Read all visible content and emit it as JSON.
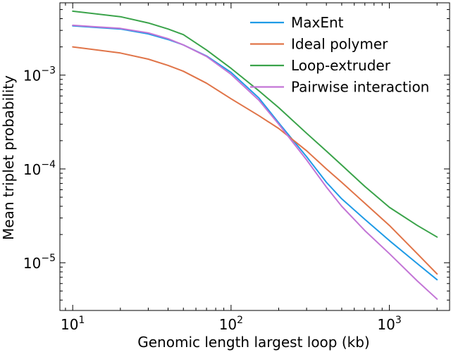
{
  "chart_data": {
    "type": "line",
    "title": "",
    "xlabel": "Genomic length largest loop (kb)",
    "ylabel": "Mean triplet probability",
    "xscale": "log",
    "yscale": "log",
    "xlim": [
      8.3,
      2400
    ],
    "ylim": [
      3.1e-06,
      0.0059
    ],
    "grid": false,
    "legend_position": "top-right",
    "x_ticks": [
      {
        "value": 10,
        "base": "10",
        "exp": "1"
      },
      {
        "value": 100,
        "base": "10",
        "exp": "2"
      },
      {
        "value": 1000,
        "base": "10",
        "exp": "3"
      }
    ],
    "y_ticks": [
      {
        "value": 1e-05,
        "base": "10",
        "exp": "−5"
      },
      {
        "value": 0.0001,
        "base": "10",
        "exp": "−4"
      },
      {
        "value": 0.001,
        "base": "10",
        "exp": "−3"
      }
    ],
    "series": [
      {
        "name": "MaxEnt",
        "color": "#1f9be6",
        "x": [
          10,
          20,
          30,
          40,
          50,
          70,
          100,
          150,
          200,
          300,
          400,
          500,
          700,
          1000,
          1500,
          2000
        ],
        "y": [
          0.00335,
          0.0031,
          0.00275,
          0.0024,
          0.0021,
          0.0016,
          0.00107,
          0.00057,
          0.00031,
          0.000135,
          7.2e-05,
          4.8e-05,
          2.9e-05,
          1.72e-05,
          9.8e-06,
          6.6e-06
        ]
      },
      {
        "name": "Ideal polymer",
        "color": "#e07448",
        "x": [
          10,
          20,
          30,
          40,
          50,
          70,
          100,
          150,
          200,
          300,
          400,
          500,
          700,
          1000,
          1500,
          2000
        ],
        "y": [
          0.002,
          0.00172,
          0.00148,
          0.00127,
          0.0011,
          0.00082,
          0.00056,
          0.00037,
          0.00027,
          0.000156,
          0.0001,
          7.2e-05,
          4.3e-05,
          2.5e-05,
          1.25e-05,
          7.6e-06
        ]
      },
      {
        "name": "Loop-extruder",
        "color": "#3aa34a",
        "x": [
          10,
          20,
          30,
          40,
          50,
          70,
          100,
          150,
          200,
          300,
          400,
          500,
          700,
          1000,
          1500,
          2000
        ],
        "y": [
          0.0048,
          0.0042,
          0.0036,
          0.0031,
          0.0027,
          0.00185,
          0.00118,
          0.00068,
          0.00045,
          0.00024,
          0.000155,
          0.00011,
          6.5e-05,
          3.9e-05,
          2.5e-05,
          1.88e-05
        ]
      },
      {
        "name": "Pairwise interaction",
        "color": "#c375d6",
        "x": [
          10,
          20,
          30,
          40,
          50,
          70,
          100,
          150,
          200,
          300,
          400,
          500,
          700,
          1000,
          1500,
          2000
        ],
        "y": [
          0.0034,
          0.00315,
          0.00282,
          0.00245,
          0.0021,
          0.00158,
          0.00102,
          0.00054,
          0.0003,
          0.000125,
          6.4e-05,
          4e-05,
          2.2e-05,
          1.25e-05,
          6.4e-06,
          4.1e-06
        ]
      }
    ]
  }
}
